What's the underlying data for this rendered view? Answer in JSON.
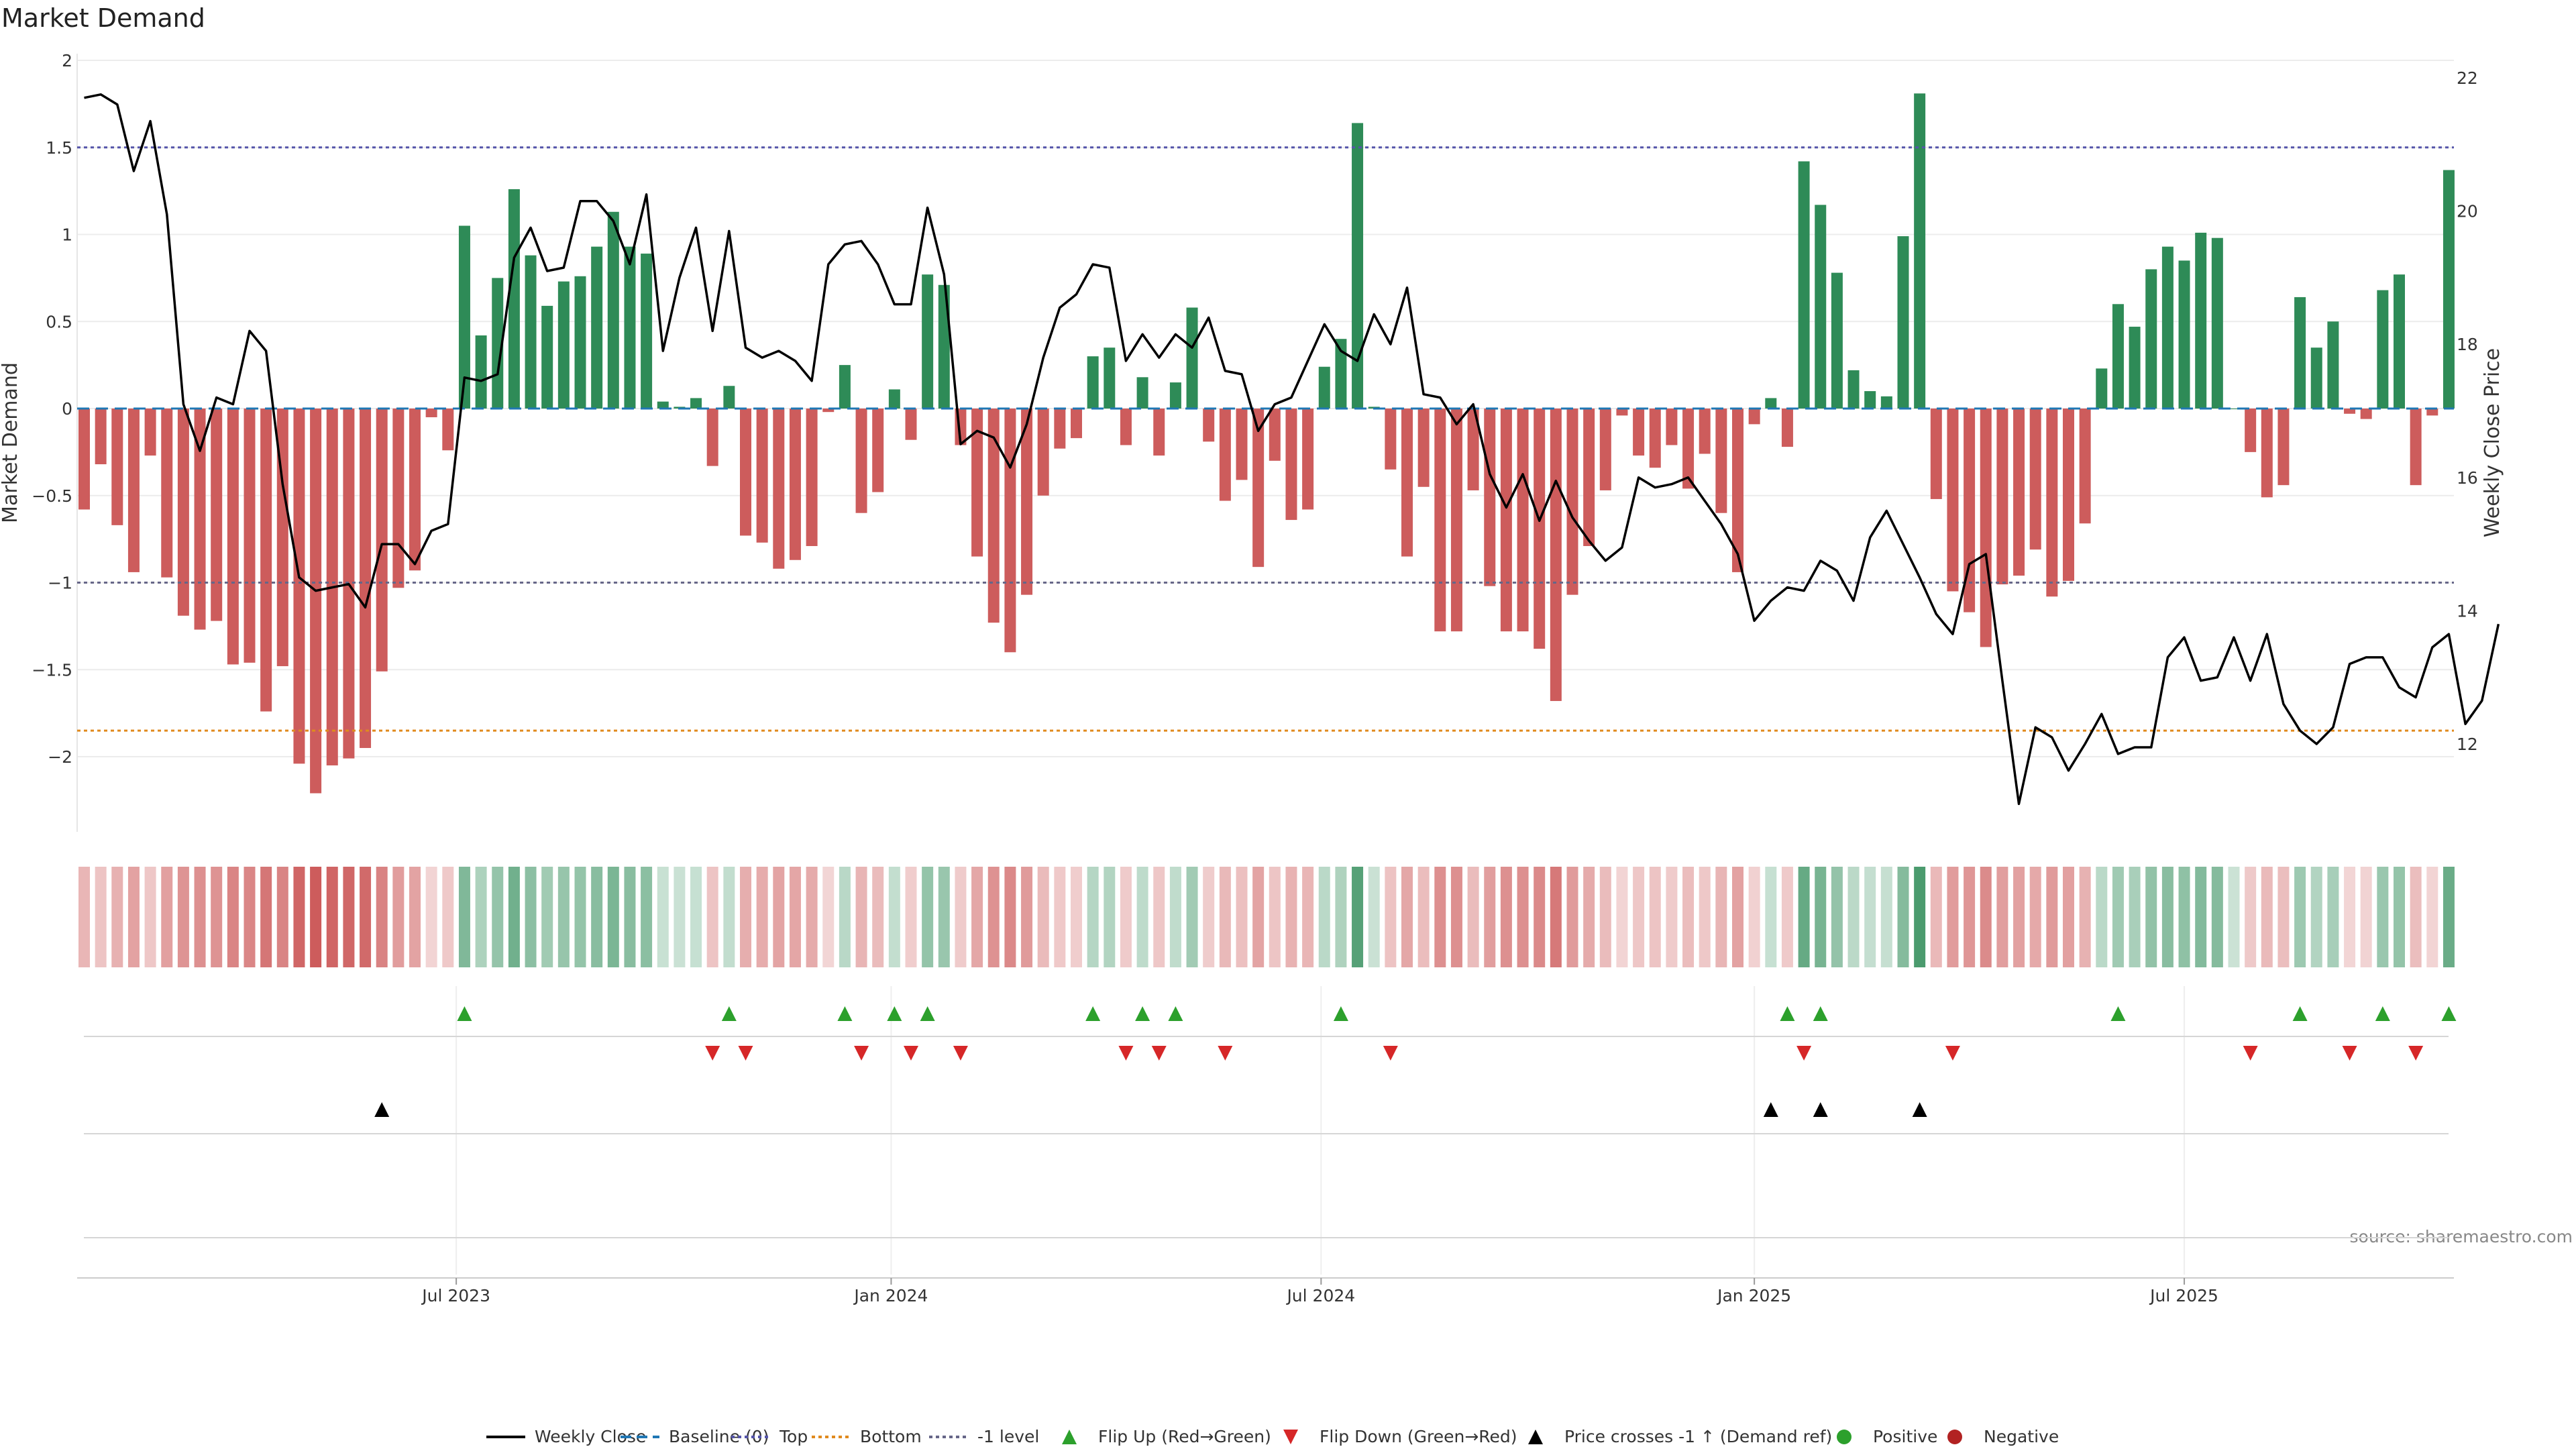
{
  "chart_data": {
    "type": "bar",
    "title": "Market Demand",
    "ylabel": "Market Demand",
    "y2label": "Weekly Close Price",
    "source": "source: sharemaestro.com",
    "ylim": [
      -2.45,
      2.0
    ],
    "y2lim": [
      11.0,
      22.5
    ],
    "yticks": [
      2,
      1.5,
      1,
      0.5,
      0,
      -0.5,
      -1,
      -1.5,
      -2
    ],
    "yticklabels": [
      "2",
      "1.5",
      "1",
      "0.5",
      "0",
      "−0.5",
      "−1",
      "−1.5",
      "−2"
    ],
    "y2ticks": [
      22,
      20,
      18,
      16,
      14,
      12
    ],
    "xticks": [
      {
        "label": "Jul 2023",
        "index": 22.5
      },
      {
        "label": "Jan 2024",
        "index": 48.8
      },
      {
        "label": "Jul 2024",
        "index": 74.8
      },
      {
        "label": "Jan 2025",
        "index": 101
      },
      {
        "label": "Jul 2025",
        "index": 127
      }
    ],
    "levels": {
      "top": 1.5,
      "bottom": -1.85,
      "minus_one": -1.0,
      "baseline": 0
    },
    "colors": {
      "positive": "#2e8b57",
      "negative": "#cd5c5c",
      "price": "#000000",
      "baseline": "#1f77b4",
      "top": "#5555aa",
      "bottom": "#e08a1e",
      "minus_one": "#666688",
      "flip_up": "#2ca02c",
      "flip_down": "#d62728",
      "cross": "#000000",
      "dot_positive": "#2ca02c",
      "dot_negative": "#b22222"
    },
    "demand": [
      -0.58,
      -0.32,
      -0.67,
      -0.94,
      -0.27,
      -0.97,
      -1.19,
      -1.27,
      -1.22,
      -1.47,
      -1.46,
      -1.74,
      -1.48,
      -2.04,
      -2.21,
      -2.05,
      -2.01,
      -1.95,
      -1.51,
      -1.03,
      -0.93,
      -0.05,
      -0.24,
      1.05,
      0.42,
      0.75,
      1.26,
      0.88,
      0.59,
      0.73,
      0.76,
      0.93,
      1.13,
      0.93,
      0.89,
      0.04,
      0.01,
      0.06,
      -0.33,
      0.13,
      -0.73,
      -0.77,
      -0.92,
      -0.87,
      -0.79,
      -0.02,
      0.25,
      -0.6,
      -0.48,
      0.11,
      -0.18,
      0.77,
      0.71,
      -0.21,
      -0.85,
      -1.23,
      -1.4,
      -1.07,
      -0.5,
      -0.23,
      -0.17,
      0.3,
      0.35,
      -0.21,
      0.18,
      -0.27,
      0.15,
      0.58,
      -0.19,
      -0.53,
      -0.41,
      -0.91,
      -0.3,
      -0.64,
      -0.58,
      0.24,
      0.4,
      1.64,
      0.01,
      -0.35,
      -0.85,
      -0.45,
      -1.28,
      -1.28,
      -0.47,
      -1.02,
      -1.28,
      -1.28,
      -1.38,
      -1.68,
      -1.07,
      -0.79,
      -0.47,
      -0.04,
      -0.27,
      -0.34,
      -0.21,
      -0.46,
      -0.26,
      -0.6,
      -0.94,
      -0.09,
      0.06,
      -0.22,
      1.42,
      1.17,
      0.78,
      0.22,
      0.1,
      0.07,
      0.99,
      1.81,
      -0.52,
      -1.05,
      -1.17,
      -1.37,
      -1.01,
      -0.96,
      -0.81,
      -1.08,
      -0.99,
      -0.66,
      0.23,
      0.6,
      0.47,
      0.8,
      0.93,
      0.85,
      1.01,
      0.98,
      0.0,
      -0.25,
      -0.51,
      -0.44,
      0.64,
      0.35,
      0.5,
      -0.03,
      -0.06,
      0.68,
      0.77,
      -0.44,
      -0.04,
      1.37
    ],
    "price": [
      21.7,
      21.75,
      21.6,
      20.6,
      21.35,
      19.95,
      17.1,
      16.4,
      17.2,
      17.1,
      18.2,
      17.9,
      15.9,
      14.5,
      14.3,
      14.35,
      14.4,
      14.05,
      15.0,
      15.0,
      14.7,
      15.2,
      15.3,
      17.5,
      17.45,
      17.55,
      19.3,
      19.75,
      19.1,
      19.15,
      20.15,
      20.15,
      19.85,
      19.2,
      20.25,
      17.9,
      19.0,
      19.75,
      18.2,
      19.7,
      17.95,
      17.8,
      17.9,
      17.75,
      17.45,
      19.2,
      19.5,
      19.55,
      19.2,
      18.6,
      18.6,
      20.05,
      19.05,
      16.5,
      16.7,
      16.6,
      16.15,
      16.8,
      17.8,
      18.55,
      18.75,
      19.2,
      19.15,
      17.75,
      18.15,
      17.8,
      18.15,
      17.95,
      18.4,
      17.6,
      17.55,
      16.7,
      17.1,
      17.2,
      17.75,
      18.3,
      17.9,
      17.75,
      18.45,
      18.0,
      18.85,
      17.25,
      17.2,
      16.8,
      17.1,
      16.05,
      15.55,
      16.05,
      15.35,
      15.95,
      15.4,
      15.05,
      14.75,
      14.95,
      16.0,
      15.85,
      15.9,
      16.0,
      15.65,
      15.3,
      14.85,
      13.85,
      14.15,
      14.35,
      14.3,
      14.75,
      14.6,
      14.15,
      15.1,
      15.5,
      15.0,
      14.5,
      13.95,
      13.65,
      14.7,
      14.85,
      12.95,
      11.1,
      12.25,
      12.1,
      11.6,
      12.0,
      12.45,
      11.85,
      11.95,
      11.95,
      13.3,
      13.6,
      12.95,
      13.0,
      13.6,
      12.95,
      13.65,
      12.6,
      12.2,
      12.0,
      12.25,
      13.2,
      13.3,
      13.3,
      12.85,
      12.7,
      13.45,
      13.65,
      12.3,
      12.65,
      13.8
    ],
    "flip_up": [
      23,
      39,
      46,
      49,
      51,
      61,
      64,
      66,
      76,
      103,
      105,
      123,
      134,
      139,
      143
    ],
    "flip_down": [
      38,
      40,
      47,
      50,
      53,
      63,
      65,
      69,
      79,
      104,
      113,
      131,
      137,
      141
    ],
    "cross_up": [
      18,
      102,
      105,
      111
    ],
    "legend": [
      {
        "label": "Weekly Close",
        "kind": "solid-line",
        "color": "#000000"
      },
      {
        "label": "Baseline (0)",
        "kind": "dashed-line",
        "color": "#1f77b4"
      },
      {
        "label": "Top",
        "kind": "dotted-line",
        "color": "#5555aa"
      },
      {
        "label": "Bottom",
        "kind": "dotted-line",
        "color": "#e08a1e"
      },
      {
        "label": "-1 level",
        "kind": "dotted-line",
        "color": "#666688"
      },
      {
        "label": "Flip Up (Red→Green)",
        "kind": "triangle-up",
        "color": "#2ca02c"
      },
      {
        "label": "Flip Down (Green→Red)",
        "kind": "triangle-down",
        "color": "#d62728"
      },
      {
        "label": "Price crosses -1 ↑ (Demand ref)",
        "kind": "triangle-up",
        "color": "#000000"
      },
      {
        "label": "Positive",
        "kind": "dot",
        "color": "#2ca02c"
      },
      {
        "label": "Negative",
        "kind": "dot",
        "color": "#b22222"
      }
    ]
  }
}
